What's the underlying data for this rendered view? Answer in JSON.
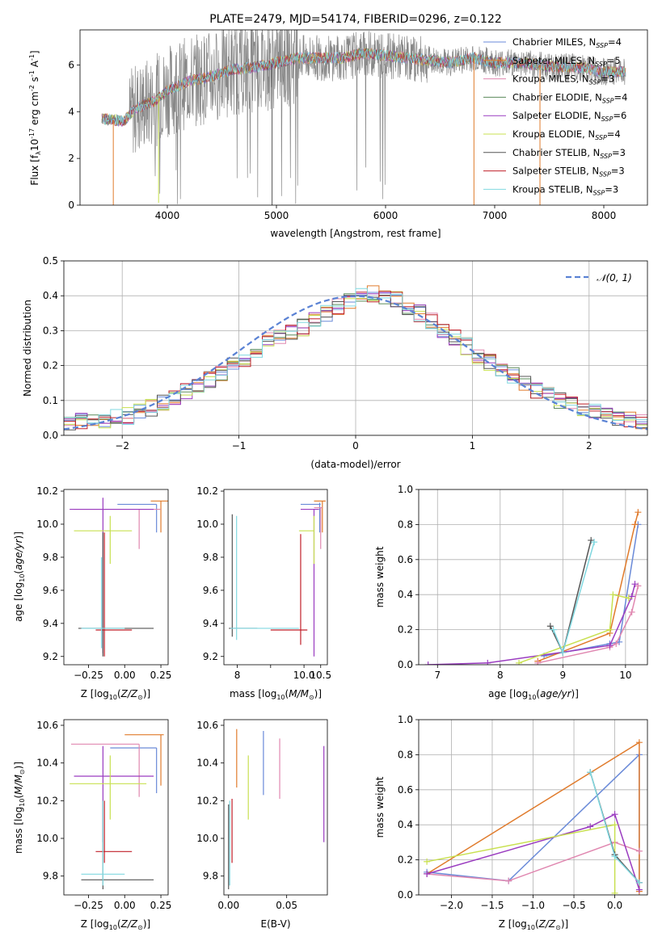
{
  "colors": {
    "cm": "#6a8ad8",
    "sm": "#e07b2c",
    "km": "#e087b0",
    "ce": "#5a8a5a",
    "se": "#9a3cc0",
    "ke": "#c8e050",
    "cs": "#555555",
    "ss": "#c0202a",
    "ks": "#80d8e0",
    "gauss": "#5a82d4",
    "grey": "#888888",
    "cyan": "#80d8e0"
  },
  "chart_data": [
    {
      "id": "spectrum",
      "type": "line",
      "title": "PLATE=2479, MJD=54174, FIBERID=0296, z=0.122",
      "xlabel": "wavelength [Angstrom, rest frame]",
      "ylabel_parts": [
        "Flux [f",
        "λ",
        "10",
        "-17",
        " erg cm",
        "-2",
        " s",
        "-1",
        " A",
        "-1",
        "]"
      ],
      "xlim": [
        3200,
        8400
      ],
      "ylim": [
        0,
        7.5
      ],
      "xticks": [
        4000,
        5000,
        6000,
        7000,
        8000
      ],
      "yticks": [
        0,
        2,
        4,
        6
      ],
      "grid": false,
      "legend": "top-right",
      "legend_entries": [
        {
          "name": "Chabrier MILES",
          "n": "4",
          "color": "cm"
        },
        {
          "name": "Salpeter MILES",
          "n": "5",
          "color": "sm"
        },
        {
          "name": "Kroupa MILES",
          "n": "3",
          "color": "km"
        },
        {
          "name": "Chabrier ELODIE",
          "n": "4",
          "color": "ce"
        },
        {
          "name": "Salpeter ELODIE",
          "n": "6",
          "color": "se"
        },
        {
          "name": "Kroupa ELODIE",
          "n": "4",
          "color": "ke"
        },
        {
          "name": "Chabrier STELIB",
          "n": "3",
          "color": "cs"
        },
        {
          "name": "Salpeter STELIB",
          "n": "3",
          "color": "ss"
        },
        {
          "name": "Kroupa STELIB",
          "n": "3",
          "color": "ks"
        }
      ],
      "continuum": [
        [
          3400,
          3.7
        ],
        [
          3600,
          3.6
        ],
        [
          3700,
          4.1
        ],
        [
          3900,
          4.5
        ],
        [
          4000,
          4.9
        ],
        [
          4200,
          5.3
        ],
        [
          4400,
          5.5
        ],
        [
          4600,
          5.8
        ],
        [
          4800,
          5.9
        ],
        [
          5000,
          6.1
        ],
        [
          5200,
          6.3
        ],
        [
          5400,
          6.3
        ],
        [
          5600,
          6.3
        ],
        [
          5800,
          6.5
        ],
        [
          6000,
          6.4
        ],
        [
          6200,
          6.3
        ],
        [
          6400,
          6.2
        ],
        [
          6600,
          6.1
        ],
        [
          6800,
          6.3
        ],
        [
          7000,
          6.1
        ],
        [
          7200,
          6.1
        ],
        [
          7400,
          6.0
        ],
        [
          7600,
          5.9
        ],
        [
          7800,
          5.9
        ],
        [
          8000,
          5.7
        ],
        [
          8200,
          5.7
        ]
      ],
      "dips": [
        [
          3505,
          0
        ],
        [
          3920,
          0.1
        ],
        [
          4960,
          0
        ],
        [
          6810,
          0
        ],
        [
          7415,
          0
        ]
      ]
    },
    {
      "id": "residuals",
      "type": "histogram",
      "xlabel": "(data-model)/error",
      "ylabel": "Normed distribution",
      "xlim": [
        -2.5,
        2.5
      ],
      "ylim": [
        0,
        0.5
      ],
      "xticks": [
        -2,
        -1,
        0,
        1,
        2
      ],
      "xtick_labels": [
        "−2",
        "−1",
        "0",
        "1",
        "2"
      ],
      "yticks": [
        0,
        0.1,
        0.2,
        0.3,
        0.4,
        0.5
      ],
      "grid": true,
      "legend": "top-right",
      "legend_label": "𝒩(0, 1)",
      "bin_width": 0.1,
      "base": [
        0.035,
        0.04,
        0.043,
        0.045,
        0.05,
        0.055,
        0.065,
        0.08,
        0.095,
        0.11,
        0.125,
        0.14,
        0.16,
        0.18,
        0.2,
        0.22,
        0.245,
        0.27,
        0.285,
        0.3,
        0.31,
        0.33,
        0.35,
        0.37,
        0.385,
        0.4,
        0.405,
        0.4,
        0.39,
        0.37,
        0.35,
        0.33,
        0.305,
        0.28,
        0.255,
        0.23,
        0.21,
        0.19,
        0.17,
        0.15,
        0.13,
        0.115,
        0.1,
        0.085,
        0.075,
        0.065,
        0.055,
        0.05,
        0.045,
        0.04
      ]
    },
    {
      "id": "z-age",
      "type": "errorbar",
      "xlabel": "Z [log10(Z/Z⊙)]",
      "ylabel": "age  [log10(age/yr)]",
      "xlim": [
        -0.42,
        0.3
      ],
      "ylim": [
        9.15,
        10.21
      ],
      "xticks": [
        -0.25,
        0,
        0.25
      ],
      "xtick_labels": [
        "−0.25",
        "0.00",
        "0.25"
      ],
      "yticks": [
        9.2,
        9.4,
        9.6,
        9.8,
        10.0,
        10.2
      ],
      "points": [
        {
          "c": "cm",
          "x": 0.22,
          "y": 10.12,
          "x0": -0.05,
          "x1": 0.22,
          "y0": 9.95,
          "y1": 10.12
        },
        {
          "c": "sm",
          "x": 0.25,
          "y": 10.14,
          "x0": 0.18,
          "x1": 0.3,
          "y0": 9.95,
          "y1": 10.14
        },
        {
          "c": "km",
          "x": 0.1,
          "y": 10.09,
          "x0": -0.35,
          "x1": 0.25,
          "y0": 9.85,
          "y1": 10.09
        },
        {
          "c": "se",
          "x": -0.15,
          "y": 10.09,
          "x0": -0.38,
          "x1": 0.2,
          "y0": 9.22,
          "y1": 10.16
        },
        {
          "c": "ke",
          "x": -0.1,
          "y": 9.96,
          "x0": -0.35,
          "x1": 0.05,
          "y0": 9.76,
          "y1": 10.05
        },
        {
          "c": "cs",
          "x": -0.15,
          "y": 9.37,
          "x0": -0.32,
          "x1": 0.2,
          "y0": 9.2,
          "y1": 9.95
        },
        {
          "c": "ss",
          "x": -0.14,
          "y": 9.36,
          "x0": -0.2,
          "x1": 0.05,
          "y0": 9.2,
          "y1": 9.95
        },
        {
          "c": "ks",
          "x": -0.16,
          "y": 9.37,
          "x0": -0.3,
          "x1": 0.0,
          "y0": 9.25,
          "y1": 9.8
        }
      ]
    },
    {
      "id": "mass-age",
      "type": "errorbar",
      "xlabel": "mass [log10(M/M⊙)]",
      "xlim": [
        7.6,
        10.7
      ],
      "ylim": [
        9.15,
        10.21
      ],
      "xticks": [
        8,
        9,
        10,
        10.5
      ],
      "xtick_labels": [
        "8",
        "",
        "10.0",
        "10.5"
      ],
      "yticks": [
        9.2,
        9.4,
        9.6,
        9.8,
        10.0,
        10.2
      ],
      "points": [
        {
          "c": "cm",
          "x": 10.47,
          "y": 10.12,
          "x0": 9.9,
          "x1": 10.5,
          "y0": 9.95,
          "y1": 10.13
        },
        {
          "c": "sm",
          "x": 10.55,
          "y": 10.14,
          "x0": 10.3,
          "x1": 10.65,
          "y0": 9.95,
          "y1": 10.14
        },
        {
          "c": "km",
          "x": 10.5,
          "y": 10.1,
          "x0": 10.3,
          "x1": 10.55,
          "y0": 9.85,
          "y1": 10.1
        },
        {
          "c": "se",
          "x": 10.3,
          "y": 10.09,
          "x0": 9.9,
          "x1": 10.45,
          "y0": 9.2,
          "y1": 10.09
        },
        {
          "c": "ke",
          "x": 10.3,
          "y": 9.96,
          "x0": 9.85,
          "x1": 10.3,
          "y0": 9.76,
          "y1": 10.05
        },
        {
          "c": "cs",
          "x": 7.85,
          "y": 9.37,
          "x0": 7.75,
          "x1": 8.6,
          "y0": 9.32,
          "y1": 10.06
        },
        {
          "c": "ss",
          "x": 9.9,
          "y": 9.36,
          "x0": 9.0,
          "x1": 10.1,
          "y0": 9.27,
          "y1": 9.94
        },
        {
          "c": "ks",
          "x": 7.98,
          "y": 9.37,
          "x0": 7.8,
          "x1": 9.85,
          "y0": 9.3,
          "y1": 10.05
        }
      ]
    },
    {
      "id": "age-weight",
      "type": "line",
      "xlabel": "age  [log10(age/yr)]",
      "ylabel": "mass weight",
      "xlim": [
        6.7,
        10.35
      ],
      "ylim": [
        0,
        1.0
      ],
      "xticks": [
        7,
        8,
        9,
        10
      ],
      "yticks": [
        0,
        0.2,
        0.4,
        0.6,
        0.8,
        1.0
      ],
      "grid": true,
      "series": [
        {
          "c": "cm",
          "x": [
            8.7,
            9.75,
            9.9,
            10.2
          ],
          "y": [
            0.05,
            0.12,
            0.13,
            0.8
          ]
        },
        {
          "c": "sm",
          "x": [
            8.6,
            9.75,
            10.15,
            10.2
          ],
          "y": [
            0.02,
            0.18,
            0.8,
            0.87
          ]
        },
        {
          "c": "km",
          "x": [
            8.6,
            9.75,
            9.85,
            10.1,
            10.2
          ],
          "y": [
            0.01,
            0.1,
            0.12,
            0.3,
            0.45
          ]
        },
        {
          "c": "se",
          "x": [
            6.85,
            7.8,
            9.75,
            10.1,
            10.15
          ],
          "y": [
            0.0,
            0.01,
            0.11,
            0.39,
            0.46
          ]
        },
        {
          "c": "ke",
          "x": [
            8.3,
            9.75,
            9.8,
            10.05
          ],
          "y": [
            0.01,
            0.2,
            0.4,
            0.38
          ]
        },
        {
          "c": "cs",
          "x": [
            8.8,
            9.0,
            9.45
          ],
          "y": [
            0.22,
            0.07,
            0.71
          ]
        },
        {
          "c": "ks",
          "x": [
            8.85,
            9.0,
            9.5
          ],
          "y": [
            0.2,
            0.07,
            0.7
          ]
        }
      ]
    },
    {
      "id": "z-mass",
      "type": "errorbar",
      "xlabel": "Z [log10(Z/Z⊙)]",
      "ylabel": "mass [log10(M/M⊙)]",
      "xlim": [
        -0.42,
        0.3
      ],
      "ylim": [
        9.7,
        10.63
      ],
      "xticks": [
        -0.25,
        0,
        0.25
      ],
      "xtick_labels": [
        "−0.25",
        "0.00",
        "0.25"
      ],
      "yticks": [
        9.8,
        10.0,
        10.2,
        10.4,
        10.6
      ],
      "points": [
        {
          "c": "cm",
          "x": 0.22,
          "y": 10.48,
          "x0": -0.1,
          "x1": 0.22,
          "y0": 10.24,
          "y1": 10.48
        },
        {
          "c": "sm",
          "x": 0.25,
          "y": 10.55,
          "x0": 0.0,
          "x1": 0.27,
          "y0": 10.28,
          "y1": 10.55
        },
        {
          "c": "km",
          "x": 0.1,
          "y": 10.5,
          "x0": -0.37,
          "x1": 0.1,
          "y0": 10.22,
          "y1": 10.5
        },
        {
          "c": "se",
          "x": -0.15,
          "y": 10.33,
          "x0": -0.35,
          "x1": 0.2,
          "y0": 9.98,
          "y1": 10.49
        },
        {
          "c": "ke",
          "x": -0.1,
          "y": 10.29,
          "x0": -0.38,
          "x1": 0.15,
          "y0": 10.1,
          "y1": 10.44
        },
        {
          "c": "cs",
          "x": -0.15,
          "y": 9.78,
          "x0": -0.3,
          "x1": 0.2,
          "y0": 9.73,
          "y1": 10.2
        },
        {
          "c": "ss",
          "x": -0.14,
          "y": 9.93,
          "x0": -0.2,
          "x1": 0.05,
          "y0": 9.87,
          "y1": 10.2
        },
        {
          "c": "ks",
          "x": -0.15,
          "y": 9.81,
          "x0": -0.3,
          "x1": 0.0,
          "y0": 9.75,
          "y1": 10.2
        }
      ]
    },
    {
      "id": "ebv-mass",
      "type": "errorbar",
      "xlabel": "E(B-V)",
      "xlim": [
        -0.004,
        0.085
      ],
      "ylim": [
        9.7,
        10.63
      ],
      "xticks": [
        0,
        0.05
      ],
      "xtick_labels": [
        "0.00",
        "0.05"
      ],
      "yticks": [
        9.8,
        10.0,
        10.2,
        10.4,
        10.6
      ],
      "points": [
        {
          "c": "cm",
          "x": 0.03,
          "y0": 10.23,
          "y1": 10.57
        },
        {
          "c": "sm",
          "x": 0.007,
          "y0": 10.27,
          "y1": 10.58
        },
        {
          "c": "km",
          "x": 0.044,
          "y0": 10.21,
          "y1": 10.53
        },
        {
          "c": "se",
          "x": 0.082,
          "y0": 9.98,
          "y1": 10.49
        },
        {
          "c": "ke",
          "x": 0.017,
          "y0": 10.1,
          "y1": 10.44
        },
        {
          "c": "cs",
          "x": 0.0,
          "y0": 9.73,
          "y1": 10.18
        },
        {
          "c": "ss",
          "x": 0.003,
          "y0": 9.87,
          "y1": 10.21
        },
        {
          "c": "ks",
          "x": 0.001,
          "y0": 9.75,
          "y1": 10.2
        }
      ]
    },
    {
      "id": "z-weight",
      "type": "line",
      "xlabel": "Z [log10(Z/Z⊙)]",
      "ylabel": "mass weight",
      "xlim": [
        -2.4,
        0.4
      ],
      "ylim": [
        0,
        1.0
      ],
      "xticks": [
        -2.0,
        -1.5,
        -1.0,
        -0.5,
        0.0
      ],
      "xtick_labels": [
        "−2.0",
        "−1.5",
        "−1.0",
        "−0.5",
        "0.0"
      ],
      "yticks": [
        0,
        0.2,
        0.4,
        0.6,
        0.8,
        1.0
      ],
      "grid": true,
      "series": [
        {
          "c": "cm",
          "x": [
            -2.3,
            -1.3,
            0.3,
            0.3
          ],
          "y": [
            0.13,
            0.08,
            0.8,
            0.07
          ]
        },
        {
          "c": "sm",
          "x": [
            -2.3,
            0.3,
            0.3
          ],
          "y": [
            0.12,
            0.87,
            0.02
          ]
        },
        {
          "c": "km",
          "x": [
            -2.3,
            -1.3,
            0.0,
            0.3
          ],
          "y": [
            0.12,
            0.08,
            0.3,
            0.25
          ]
        },
        {
          "c": "se",
          "x": [
            -2.3,
            -0.3,
            0.0,
            0.3
          ],
          "y": [
            0.12,
            0.39,
            0.46,
            0.03
          ]
        },
        {
          "c": "ke",
          "x": [
            -2.3,
            0.0,
            0.0
          ],
          "y": [
            0.19,
            0.4,
            0.01
          ]
        },
        {
          "c": "cs",
          "x": [
            -0.3,
            0.0,
            0.3
          ],
          "y": [
            0.7,
            0.23,
            0.07
          ]
        },
        {
          "c": "ks",
          "x": [
            -0.3,
            0.0,
            0.3
          ],
          "y": [
            0.7,
            0.22,
            0.07
          ]
        }
      ]
    }
  ]
}
